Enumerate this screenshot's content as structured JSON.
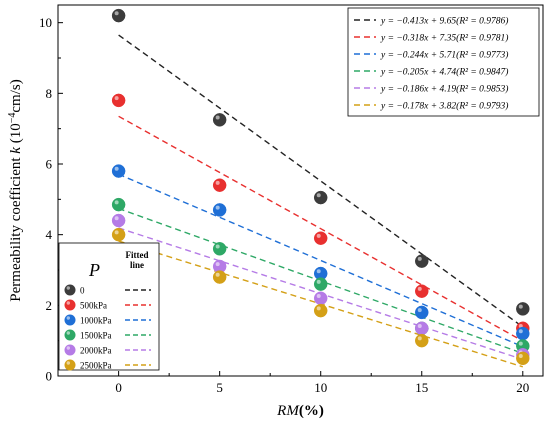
{
  "chart_data": {
    "type": "scatter",
    "title": "",
    "xlabel_italic": "RM",
    "xlabel_rest": "(%)",
    "ylabel_main": "Permeability coefficient ",
    "ylabel_var": "k",
    "ylabel_unit_pre": " (10",
    "ylabel_exp": "−4",
    "ylabel_unit_post": "cm/s)",
    "x": [
      0,
      5,
      10,
      15,
      20
    ],
    "xlim": [
      -3,
      21
    ],
    "ylim": [
      0,
      10.5
    ],
    "xticks": [
      0,
      5,
      10,
      15,
      20
    ],
    "yticks": [
      0,
      2,
      4,
      6,
      8,
      10
    ],
    "grid": false,
    "series": [
      {
        "name": "0",
        "color": "#3c3c3c",
        "line_color": "#222222",
        "values": [
          10.2,
          7.25,
          5.05,
          3.25,
          1.9
        ],
        "slope": -0.413,
        "intercept": 9.65,
        "equation": "y = −0.413x + 9.65(R² = 0.9786)"
      },
      {
        "name": "500kPa",
        "color": "#e8302f",
        "line_color": "#e8302f",
        "values": [
          7.8,
          5.4,
          3.9,
          2.4,
          1.35
        ],
        "slope": -0.318,
        "intercept": 7.35,
        "equation": "y = −0.318x + 7.35(R² = 0.9781)"
      },
      {
        "name": "1000kPa",
        "color": "#1f6fd6",
        "line_color": "#1f6fd6",
        "values": [
          5.8,
          4.7,
          2.9,
          1.8,
          1.2
        ],
        "slope": -0.244,
        "intercept": 5.71,
        "equation": "y = −0.244x + 5.71(R² = 0.9773)"
      },
      {
        "name": "1500kPa",
        "color": "#2ea866",
        "line_color": "#2ea866",
        "values": [
          4.85,
          3.6,
          2.6,
          1.35,
          0.85
        ],
        "slope": -0.205,
        "intercept": 4.74,
        "equation": "y = −0.205x + 4.74(R² = 0.9847)"
      },
      {
        "name": "2000kPa",
        "color": "#b57be6",
        "line_color": "#b57be6",
        "values": [
          4.4,
          3.1,
          2.2,
          1.35,
          0.6
        ],
        "slope": -0.186,
        "intercept": 4.19,
        "equation": "y = −0.186x + 4.19(R² = 0.9853)"
      },
      {
        "name": "2500kPa",
        "color": "#d4a017",
        "line_color": "#d4a017",
        "values": [
          4.0,
          2.8,
          1.85,
          1.0,
          0.5
        ],
        "slope": -0.178,
        "intercept": 3.82,
        "equation": "y = −0.178x + 3.82(R² = 0.9793)"
      }
    ],
    "legend_title_symbol": "P",
    "legend_title_line": "Fitted line",
    "legend_placement": "bottom-left",
    "equations_placement": "top-right"
  }
}
